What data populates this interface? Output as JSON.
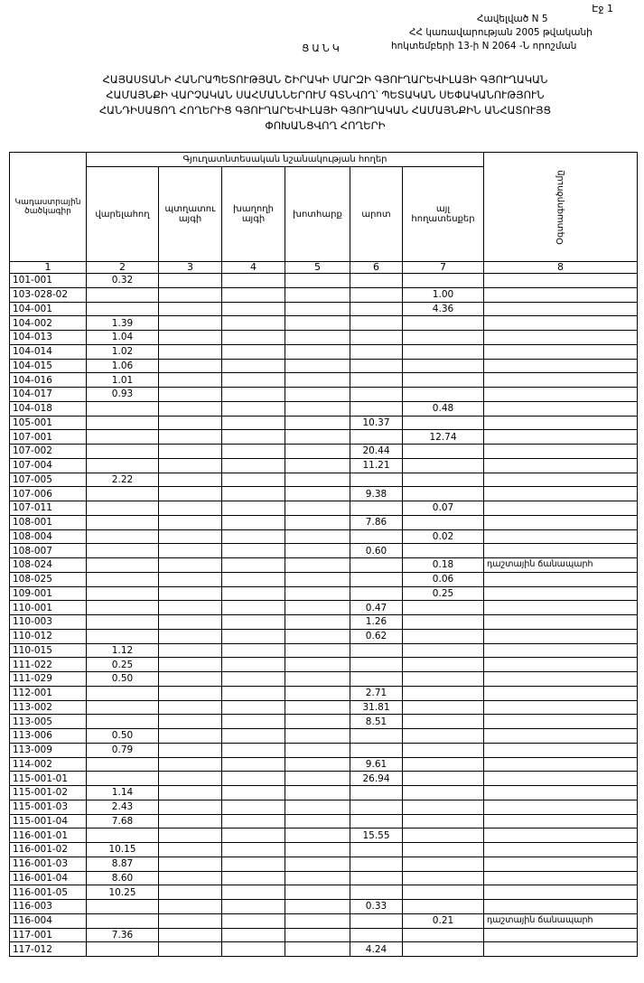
{
  "header": {
    "page": "Էջ 1",
    "appendix": [
      "Հավելված N 5",
      "ՀՀ կառավարության 2005 թվականի",
      "հոկտեմբերի 13-ի N 2064 -Ն որոշման"
    ]
  },
  "title": {
    "list": "ՑԱՆԿ",
    "lines": [
      "ՀԱՅԱՍՏԱՆԻ ՀԱՆՐԱՊԵՏՈՒԹՅԱՆ ՇԻՐԱԿԻ ՄԱՐԶԻ ԳՅՈՒՂԱՐԵՎԻԼԱՅԻ ԳՅՈՒՂԱԿԱՆ",
      "ՀԱՄԱՅՆՔԻ ՎԱՐՉԱԿԱՆ ՍԱՀՄԱՆՆԵՐՈՒՄ ԳՏՆՎՈՂ՝ ՊԵՏԱԿԱՆ ՍԵՓԱԿԱՆՈՒԹՅՈՒՆ",
      "ՀԱՆԴԻՍԱՑՈՂ ՀՈՂԵՐԻՑ ԳՅՈՒՂԱՐԵՎԻԼԱՅԻ ԳՅՈՒՂԱԿԱՆ ՀԱՄԱՅՆՔԻՆ ԱՆՀԱՏՈՒՅՑ",
      "ՓՈԽԱՆՑՎՈՂ ՀՈՂԵՐԻ"
    ]
  },
  "table": {
    "group_header": "Գյուղատնտեսական նշանակության հողեր",
    "columns": [
      "Կադաստրային ծածկագիր",
      "վարելահող",
      "պտղատու այգի",
      "խաղողի այգի",
      "խոտհարք",
      "արոտ",
      "այլ հողատեսքեր",
      "Օգտագործումը"
    ],
    "column_numbers": [
      "1",
      "2",
      "3",
      "4",
      "5",
      "6",
      "7",
      "8"
    ],
    "rows": [
      {
        "code": "101-001",
        "col2": "0.32"
      },
      {
        "code": "103-028-02",
        "col7": "1.00"
      },
      {
        "code": "104-001",
        "col7": "4.36"
      },
      {
        "code": "104-002",
        "col2": "1.39"
      },
      {
        "code": "104-013",
        "col2": "1.04"
      },
      {
        "code": "104-014",
        "col2": "1.02"
      },
      {
        "code": "104-015",
        "col2": "1.06"
      },
      {
        "code": "104-016",
        "col2": "1.01"
      },
      {
        "code": "104-017",
        "col2": "0.93"
      },
      {
        "code": "104-018",
        "col7": "0.48"
      },
      {
        "code": "105-001",
        "col6": "10.37"
      },
      {
        "code": "107-001",
        "col7": "12.74"
      },
      {
        "code": "107-002",
        "col6": "20.44"
      },
      {
        "code": "107-004",
        "col6": "11.21"
      },
      {
        "code": "107-005",
        "col2": "2.22"
      },
      {
        "code": "107-006",
        "col6": "9.38"
      },
      {
        "code": "107-011",
        "col7": "0.07"
      },
      {
        "code": "108-001",
        "col6": "7.86"
      },
      {
        "code": "108-004",
        "col7": "0.02"
      },
      {
        "code": "108-007",
        "col6": "0.60"
      },
      {
        "code": "108-024",
        "col7": "0.18",
        "col8": "դաշտային ճանապարհ"
      },
      {
        "code": "108-025",
        "col7": "0.06"
      },
      {
        "code": "109-001",
        "col7": "0.25"
      },
      {
        "code": "110-001",
        "col6": "0.47"
      },
      {
        "code": "110-003",
        "col6": "1.26"
      },
      {
        "code": "110-012",
        "col6": "0.62"
      },
      {
        "code": "110-015",
        "col2": "1.12"
      },
      {
        "code": "111-022",
        "col2": "0.25"
      },
      {
        "code": "111-029",
        "col2": "0.50"
      },
      {
        "code": "112-001",
        "col6": "2.71"
      },
      {
        "code": "113-002",
        "col6": "31.81"
      },
      {
        "code": "113-005",
        "col6": "8.51"
      },
      {
        "code": "113-006",
        "col2": "0.50"
      },
      {
        "code": "113-009",
        "col2": "0.79"
      },
      {
        "code": "114-002",
        "col6": "9.61"
      },
      {
        "code": "115-001-01",
        "col6": "26.94"
      },
      {
        "code": "115-001-02",
        "col2": "1.14"
      },
      {
        "code": "115-001-03",
        "col2": "2.43"
      },
      {
        "code": "115-001-04",
        "col2": "7.68"
      },
      {
        "code": "116-001-01",
        "col6": "15.55"
      },
      {
        "code": "116-001-02",
        "col2": "10.15"
      },
      {
        "code": "116-001-03",
        "col2": "8.87"
      },
      {
        "code": "116-001-04",
        "col2": "8.60"
      },
      {
        "code": "116-001-05",
        "col2": "10.25"
      },
      {
        "code": "116-003",
        "col6": "0.33"
      },
      {
        "code": "116-004",
        "col7": "0.21",
        "col8": "դաշտային ճանապարհ"
      },
      {
        "code": "117-001",
        "col2": "7.36"
      },
      {
        "code": "117-012",
        "col6": "4.24"
      }
    ]
  }
}
